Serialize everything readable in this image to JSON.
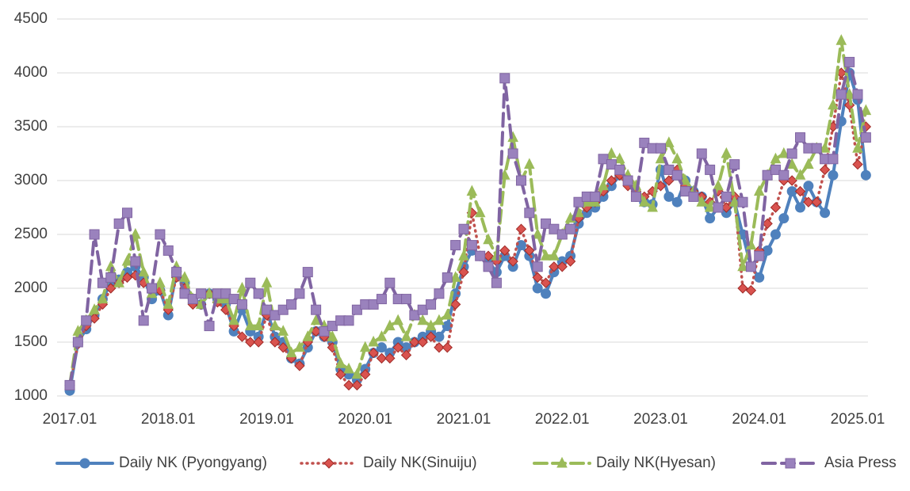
{
  "chart_data": {
    "type": "line",
    "categories": [
      "2017.01",
      null,
      null,
      null,
      null,
      null,
      null,
      null,
      null,
      null,
      null,
      null,
      "2018.01",
      null,
      null,
      null,
      null,
      null,
      null,
      null,
      null,
      null,
      null,
      null,
      "2019.01",
      null,
      null,
      null,
      null,
      null,
      null,
      null,
      null,
      null,
      null,
      null,
      "2020.01",
      null,
      null,
      null,
      null,
      null,
      null,
      null,
      null,
      null,
      null,
      null,
      "2021.01",
      null,
      null,
      null,
      null,
      null,
      null,
      null,
      null,
      null,
      null,
      null,
      "2022.01",
      null,
      null,
      null,
      null,
      null,
      null,
      null,
      null,
      null,
      null,
      null,
      "2023.01",
      null,
      null,
      null,
      null,
      null,
      null,
      null,
      null,
      null,
      null,
      null,
      "2024.01",
      null,
      null,
      null,
      null,
      null,
      null,
      null,
      null,
      null,
      null,
      null,
      "2025.01",
      null
    ],
    "series": [
      {
        "name": "Daily NK (Pyongyang)",
        "color": "#4f81bd",
        "values": [
          1050,
          1500,
          1620,
          1750,
          1900,
          2050,
          2080,
          2150,
          2200,
          2100,
          1900,
          1980,
          1750,
          2150,
          2050,
          1900,
          1850,
          1950,
          1900,
          1850,
          1600,
          1800,
          1600,
          1550,
          1800,
          1550,
          1500,
          1350,
          1300,
          1450,
          1600,
          1550,
          1500,
          1250,
          1200,
          1150,
          1250,
          1400,
          1450,
          1400,
          1500,
          1450,
          1500,
          1550,
          1600,
          1550,
          1650,
          1950,
          2200,
          2350,
          2300,
          2250,
          2150,
          2300,
          2200,
          2400,
          2300,
          2000,
          1950,
          2150,
          2250,
          2300,
          2600,
          2700,
          2750,
          2850,
          2950,
          3050,
          3000,
          2850,
          2800,
          2780,
          3100,
          2850,
          2800,
          3000,
          2900,
          2850,
          2650,
          2750,
          2700,
          2800,
          2500,
          2200,
          2100,
          2350,
          2500,
          2650,
          2900,
          2750,
          2950,
          2800,
          2700,
          3050,
          3550,
          4000,
          3750,
          3050
        ]
      },
      {
        "name": "Daily NK(Sinuiju)",
        "color": "#c0504d",
        "values": [
          1100,
          1480,
          1650,
          1720,
          1850,
          2000,
          2050,
          2100,
          2120,
          2050,
          2000,
          1980,
          1800,
          2100,
          2000,
          1850,
          1850,
          1950,
          1870,
          1800,
          1650,
          1550,
          1500,
          1500,
          1750,
          1500,
          1450,
          1350,
          1280,
          1500,
          1600,
          1550,
          1450,
          1200,
          1100,
          1100,
          1200,
          1400,
          1350,
          1350,
          1450,
          1380,
          1500,
          1500,
          1550,
          1450,
          1450,
          1850,
          2150,
          2700,
          2300,
          2300,
          2250,
          2350,
          2250,
          2550,
          2350,
          2100,
          2050,
          2200,
          2200,
          2250,
          2650,
          2750,
          2800,
          2900,
          3000,
          3050,
          2950,
          2900,
          2850,
          2900,
          2950,
          3000,
          3100,
          2950,
          2900,
          2850,
          2800,
          2900,
          2750,
          2850,
          2000,
          1980,
          2350,
          2600,
          2750,
          3000,
          3000,
          2900,
          2800,
          2800,
          3100,
          3500,
          4000,
          3700,
          3150,
          3500
        ]
      },
      {
        "name": "Daily NK(Hyesan)",
        "color": "#9bbb59",
        "values": [
          1100,
          1600,
          1700,
          1800,
          1900,
          2200,
          2050,
          2250,
          2500,
          2150,
          1950,
          2050,
          1850,
          2200,
          2100,
          1900,
          1850,
          1950,
          1900,
          1900,
          1700,
          2000,
          1650,
          1650,
          2050,
          1650,
          1600,
          1400,
          1450,
          1550,
          1700,
          1650,
          1550,
          1300,
          1250,
          1200,
          1450,
          1500,
          1550,
          1650,
          1700,
          1550,
          1750,
          1700,
          1650,
          1700,
          1750,
          2100,
          2300,
          2900,
          2700,
          2450,
          2300,
          3050,
          3400,
          3000,
          3150,
          2500,
          2300,
          2300,
          2500,
          2650,
          2700,
          2800,
          2800,
          2950,
          3250,
          3200,
          3050,
          2950,
          2800,
          2750,
          3200,
          3350,
          3200,
          3000,
          2900,
          2800,
          2750,
          2950,
          3250,
          2800,
          2200,
          2400,
          2900,
          3050,
          3200,
          3250,
          3150,
          3050,
          3150,
          3300,
          3300,
          3700,
          4300,
          3800,
          3300,
          3650
        ]
      },
      {
        "name": "Asia Press",
        "color": "#8064a2",
        "values": [
          1100,
          1500,
          1700,
          2500,
          2050,
          2100,
          2600,
          2700,
          2250,
          1700,
          2000,
          2500,
          2350,
          2150,
          1950,
          1900,
          1950,
          1650,
          1950,
          1950,
          1900,
          1850,
          2050,
          1950,
          1800,
          1750,
          1800,
          1850,
          1950,
          2150,
          1800,
          1600,
          1650,
          1700,
          1700,
          1800,
          1850,
          1850,
          1900,
          2050,
          1900,
          1900,
          1750,
          1800,
          1850,
          1950,
          2100,
          2400,
          2550,
          2400,
          2300,
          2200,
          2050,
          3950,
          3250,
          3000,
          2700,
          2200,
          2600,
          2550,
          2500,
          2550,
          2800,
          2850,
          2850,
          3200,
          3150,
          3100,
          3000,
          2850,
          3350,
          3300,
          3300,
          3100,
          3050,
          2900,
          2850,
          3250,
          3100,
          2750,
          2850,
          3150,
          2800,
          2200,
          2300,
          3050,
          3100,
          3050,
          3250,
          3400,
          3300,
          3300,
          3200,
          3200,
          3800,
          4100,
          3800,
          3400
        ]
      }
    ],
    "ylim": [
      1000,
      4500
    ],
    "yticks": [
      1000,
      1500,
      2000,
      2500,
      3000,
      3500,
      4000,
      4500
    ],
    "grid": true,
    "legend": "bottom"
  }
}
